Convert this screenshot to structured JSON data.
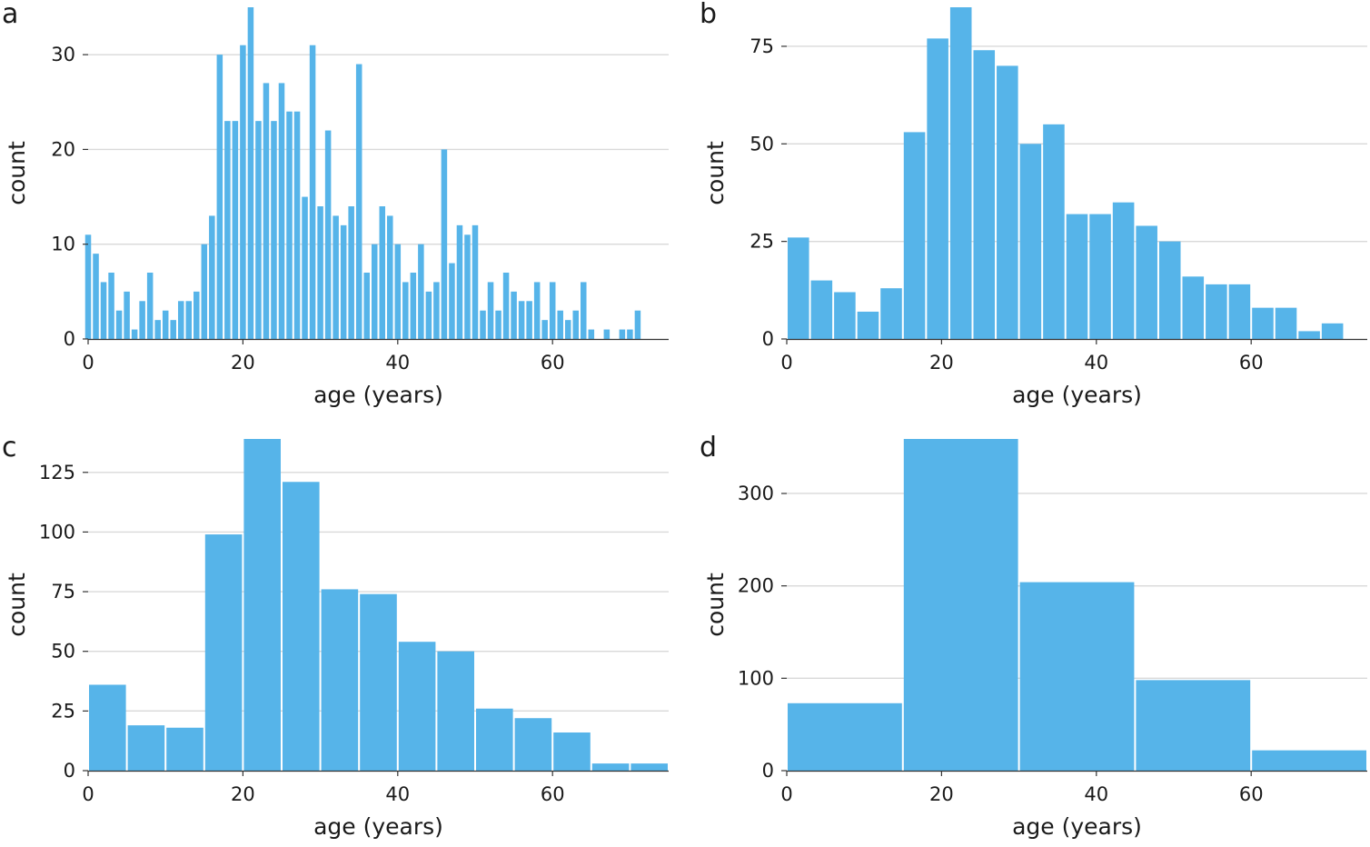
{
  "colors": {
    "bar": "#56b4e9",
    "grid": "#d9d9d9",
    "text": "#1a1a1a"
  },
  "chart_data": [
    {
      "panel": "a",
      "type": "bar",
      "binwidth": 1,
      "x": [
        0,
        1,
        2,
        3,
        4,
        5,
        6,
        7,
        8,
        9,
        10,
        11,
        12,
        13,
        14,
        15,
        16,
        17,
        18,
        19,
        20,
        21,
        22,
        23,
        24,
        25,
        26,
        27,
        28,
        29,
        30,
        31,
        32,
        33,
        34,
        35,
        36,
        37,
        38,
        39,
        40,
        41,
        42,
        43,
        44,
        45,
        46,
        47,
        48,
        49,
        50,
        51,
        52,
        53,
        54,
        55,
        56,
        57,
        58,
        59,
        60,
        61,
        62,
        63,
        64,
        65,
        66,
        67,
        68,
        69,
        70,
        71
      ],
      "values": [
        11,
        9,
        6,
        7,
        3,
        5,
        1,
        4,
        7,
        2,
        3,
        2,
        4,
        4,
        5,
        10,
        13,
        30,
        23,
        23,
        31,
        35,
        23,
        27,
        23,
        27,
        24,
        24,
        15,
        31,
        14,
        22,
        13,
        12,
        14,
        29,
        7,
        10,
        14,
        13,
        10,
        6,
        7,
        10,
        5,
        6,
        20,
        8,
        12,
        11,
        12,
        3,
        6,
        3,
        7,
        5,
        4,
        4,
        6,
        2,
        6,
        3,
        2,
        3,
        6,
        1,
        0,
        1,
        0,
        1,
        1,
        3
      ],
      "xlim": [
        0,
        75
      ],
      "ylim": [
        0,
        35
      ],
      "xticks": [
        0,
        20,
        40,
        60
      ],
      "yticks": [
        0,
        10,
        20,
        30
      ],
      "xlabel": "age (years)",
      "ylabel": "count",
      "grid": "horizontal"
    },
    {
      "panel": "b",
      "type": "bar",
      "binwidth": 3,
      "x": [
        1.5,
        4.5,
        7.5,
        10.5,
        13.5,
        16.5,
        19.5,
        22.5,
        25.5,
        28.5,
        31.5,
        34.5,
        37.5,
        40.5,
        43.5,
        46.5,
        49.5,
        52.5,
        55.5,
        58.5,
        61.5,
        64.5,
        67.5,
        70.5
      ],
      "values": [
        26,
        15,
        12,
        7,
        13,
        53,
        77,
        85,
        74,
        70,
        50,
        55,
        32,
        32,
        35,
        29,
        25,
        16,
        14,
        14,
        8,
        8,
        2,
        4
      ],
      "xlim": [
        0,
        75
      ],
      "ylim": [
        0,
        85
      ],
      "xticks": [
        0,
        20,
        40,
        60
      ],
      "yticks": [
        0,
        25,
        50,
        75
      ],
      "xlabel": "age (years)",
      "ylabel": "count",
      "grid": "horizontal"
    },
    {
      "panel": "c",
      "type": "bar",
      "binwidth": 5,
      "x": [
        2.5,
        7.5,
        12.5,
        17.5,
        22.5,
        27.5,
        32.5,
        37.5,
        42.5,
        47.5,
        52.5,
        57.5,
        62.5,
        67.5,
        72.5
      ],
      "values": [
        36,
        19,
        18,
        99,
        139,
        121,
        76,
        74,
        54,
        50,
        26,
        22,
        16,
        3,
        3
      ],
      "xlim": [
        0,
        75
      ],
      "ylim": [
        0,
        139
      ],
      "xticks": [
        0,
        20,
        40,
        60
      ],
      "yticks": [
        0,
        25,
        50,
        75,
        100,
        125
      ],
      "xlabel": "age (years)",
      "ylabel": "count",
      "grid": "horizontal"
    },
    {
      "panel": "d",
      "type": "bar",
      "binwidth": 15,
      "x": [
        7.5,
        22.5,
        37.5,
        52.5,
        67.5
      ],
      "values": [
        73,
        359,
        204,
        98,
        22
      ],
      "xlim": [
        0,
        75
      ],
      "ylim": [
        0,
        359
      ],
      "xticks": [
        0,
        20,
        40,
        60
      ],
      "yticks": [
        0,
        100,
        200,
        300
      ],
      "xlabel": "age (years)",
      "ylabel": "count",
      "grid": "horizontal"
    }
  ]
}
